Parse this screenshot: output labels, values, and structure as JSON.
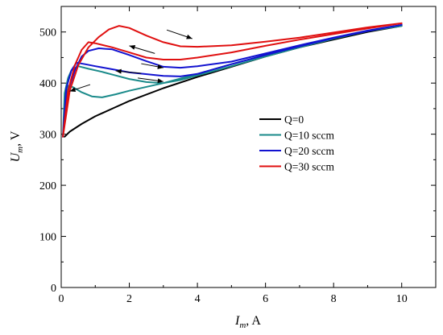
{
  "chart_data": {
    "type": "line",
    "xlabel": {
      "main": "I",
      "sub": "m",
      "unit": ", A"
    },
    "ylabel": {
      "main": "U",
      "sub": "m",
      "unit": ", V"
    },
    "xlim": [
      0,
      11
    ],
    "ylim": [
      0,
      550
    ],
    "xticks": [
      0,
      2,
      4,
      6,
      8,
      10
    ],
    "yticks": [
      0,
      100,
      200,
      300,
      400,
      500
    ],
    "grid": false,
    "legend_position": "center-right",
    "series": [
      {
        "name": "Q=0",
        "color": "#000000",
        "points": [
          [
            0.1,
            295
          ],
          [
            0.25,
            305
          ],
          [
            0.6,
            320
          ],
          [
            1.0,
            335
          ],
          [
            1.5,
            350
          ],
          [
            2.0,
            365
          ],
          [
            3.0,
            390
          ],
          [
            4.0,
            412
          ],
          [
            5.0,
            432
          ],
          [
            6.0,
            452
          ],
          [
            7.0,
            470
          ],
          [
            8.0,
            485
          ],
          [
            9.0,
            500
          ],
          [
            10.0,
            512
          ]
        ]
      },
      {
        "name": "Q=10 sccm",
        "color": "#1a8a8a",
        "points": [
          [
            0.05,
            295
          ],
          [
            0.12,
            355
          ],
          [
            0.2,
            395
          ],
          [
            0.35,
            392
          ],
          [
            0.6,
            382
          ],
          [
            0.9,
            374
          ],
          [
            1.2,
            372
          ],
          [
            1.6,
            378
          ],
          [
            2.0,
            385
          ],
          [
            3.0,
            400
          ],
          [
            4.0,
            418
          ],
          [
            5.0,
            437
          ],
          [
            6.0,
            455
          ],
          [
            7.0,
            472
          ],
          [
            8.0,
            488
          ],
          [
            9.0,
            502
          ],
          [
            10.0,
            512
          ],
          [
            9.0,
            502
          ],
          [
            8.0,
            487
          ],
          [
            7.0,
            470
          ],
          [
            6.0,
            452
          ],
          [
            5.0,
            433
          ],
          [
            4.0,
            415
          ],
          [
            3.5,
            406
          ],
          [
            3.0,
            400
          ],
          [
            2.5,
            402
          ],
          [
            2.0,
            408
          ],
          [
            1.6,
            415
          ],
          [
            1.2,
            422
          ],
          [
            0.8,
            428
          ],
          [
            0.5,
            433
          ],
          [
            0.3,
            425
          ],
          [
            0.2,
            410
          ],
          [
            0.1,
            380
          ],
          [
            0.05,
            295
          ]
        ]
      },
      {
        "name": "Q=20 sccm",
        "color": "#1212d0",
        "points": [
          [
            0.05,
            295
          ],
          [
            0.15,
            390
          ],
          [
            0.3,
            425
          ],
          [
            0.45,
            440
          ],
          [
            0.7,
            437
          ],
          [
            1.0,
            433
          ],
          [
            1.5,
            427
          ],
          [
            2.0,
            421
          ],
          [
            3.0,
            414
          ],
          [
            3.5,
            413
          ],
          [
            4.0,
            418
          ],
          [
            5.0,
            437
          ],
          [
            6.0,
            455
          ],
          [
            7.0,
            472
          ],
          [
            8.0,
            488
          ],
          [
            9.0,
            502
          ],
          [
            10.0,
            514
          ],
          [
            9.0,
            503
          ],
          [
            8.0,
            489
          ],
          [
            7.0,
            474
          ],
          [
            6.0,
            458
          ],
          [
            5.0,
            442
          ],
          [
            4.0,
            433
          ],
          [
            3.5,
            430
          ],
          [
            3.0,
            432
          ],
          [
            2.5,
            443
          ],
          [
            2.0,
            455
          ],
          [
            1.5,
            466
          ],
          [
            1.1,
            468
          ],
          [
            0.8,
            463
          ],
          [
            0.6,
            452
          ],
          [
            0.4,
            425
          ],
          [
            0.2,
            385
          ],
          [
            0.05,
            295
          ]
        ]
      },
      {
        "name": "Q=30 sccm",
        "color": "#e01010",
        "points": [
          [
            0.05,
            295
          ],
          [
            0.2,
            385
          ],
          [
            0.4,
            435
          ],
          [
            0.6,
            465
          ],
          [
            0.8,
            480
          ],
          [
            1.0,
            478
          ],
          [
            1.5,
            470
          ],
          [
            2.0,
            460
          ],
          [
            2.5,
            450
          ],
          [
            3.0,
            446
          ],
          [
            3.5,
            446
          ],
          [
            4.0,
            450
          ],
          [
            5.0,
            460
          ],
          [
            6.0,
            473
          ],
          [
            7.0,
            485
          ],
          [
            8.0,
            496
          ],
          [
            9.0,
            507
          ],
          [
            10.0,
            517
          ],
          [
            9.0,
            509
          ],
          [
            8.0,
            499
          ],
          [
            7.0,
            489
          ],
          [
            6.0,
            481
          ],
          [
            5.0,
            474
          ],
          [
            4.0,
            471
          ],
          [
            3.5,
            472
          ],
          [
            3.0,
            480
          ],
          [
            2.5,
            493
          ],
          [
            2.0,
            508
          ],
          [
            1.7,
            512
          ],
          [
            1.4,
            505
          ],
          [
            1.1,
            490
          ],
          [
            0.8,
            470
          ],
          [
            0.5,
            435
          ],
          [
            0.25,
            385
          ],
          [
            0.05,
            295
          ]
        ]
      }
    ],
    "annotations": [
      {
        "type": "arrow",
        "from": [
          3.1,
          504
        ],
        "to": [
          3.85,
          487
        ]
      },
      {
        "type": "arrow",
        "from": [
          2.75,
          458
        ],
        "to": [
          2.0,
          473
        ]
      },
      {
        "type": "arrow",
        "from": [
          2.35,
          438
        ],
        "to": [
          3.0,
          430
        ]
      },
      {
        "type": "arrow",
        "from": [
          2.35,
          419
        ],
        "to": [
          1.6,
          424
        ]
      },
      {
        "type": "arrow",
        "from": [
          2.25,
          410
        ],
        "to": [
          3.0,
          403
        ]
      },
      {
        "type": "arrow",
        "from": [
          0.85,
          397
        ],
        "to": [
          0.25,
          384
        ]
      }
    ]
  }
}
